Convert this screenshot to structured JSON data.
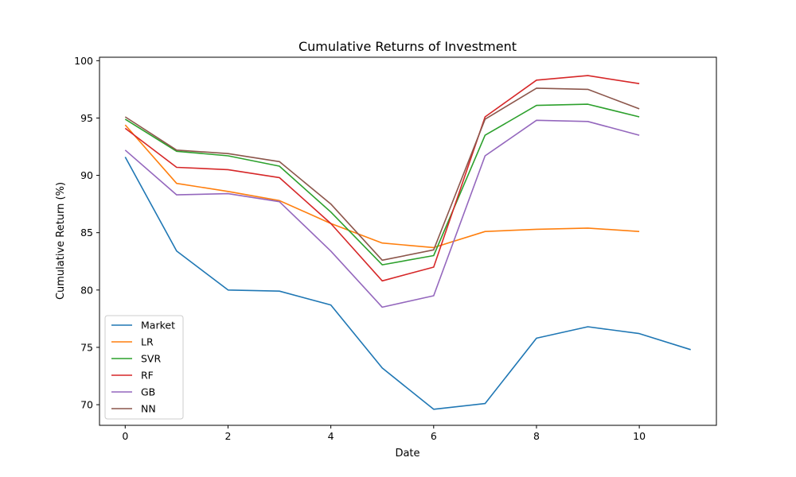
{
  "chart_data": {
    "type": "line",
    "title": "Cumulative Returns of Investment",
    "xlabel": "Date",
    "ylabel": "Cumulative Return (%)",
    "xlim": [
      -0.5,
      11.5
    ],
    "ylim": [
      68.2,
      100.3
    ],
    "xticks": [
      0,
      2,
      4,
      6,
      8,
      10
    ],
    "yticks": [
      70,
      75,
      80,
      85,
      90,
      95,
      100
    ],
    "grid": false,
    "legend_position": "lower-left",
    "series": [
      {
        "name": "Market",
        "color": "#1f77b4",
        "x": [
          0,
          1,
          2,
          3,
          4,
          5,
          6,
          7,
          8,
          9,
          10,
          11
        ],
        "y": [
          91.6,
          83.4,
          80.0,
          79.9,
          78.7,
          73.2,
          69.6,
          70.1,
          75.8,
          76.8,
          76.2,
          74.8
        ]
      },
      {
        "name": "LR",
        "color": "#ff7f0e",
        "x": [
          0,
          1,
          2,
          3,
          4,
          5,
          6,
          7,
          8,
          9,
          10
        ],
        "y": [
          94.4,
          89.3,
          88.6,
          87.8,
          85.8,
          84.1,
          83.7,
          85.1,
          85.3,
          85.4,
          85.1
        ]
      },
      {
        "name": "SVR",
        "color": "#2ca02c",
        "x": [
          0,
          1,
          2,
          3,
          4,
          5,
          6,
          7,
          8,
          9,
          10
        ],
        "y": [
          94.9,
          92.1,
          91.7,
          90.8,
          86.8,
          82.2,
          83.0,
          93.5,
          96.1,
          96.2,
          95.1
        ]
      },
      {
        "name": "RF",
        "color": "#d62728",
        "x": [
          0,
          1,
          2,
          3,
          4,
          5,
          6,
          7,
          8,
          9,
          10
        ],
        "y": [
          94.1,
          90.7,
          90.5,
          89.8,
          85.8,
          80.8,
          82.0,
          95.1,
          98.3,
          98.7,
          98.0
        ]
      },
      {
        "name": "GB",
        "color": "#9467bd",
        "x": [
          0,
          1,
          2,
          3,
          4,
          5,
          6,
          7,
          8,
          9,
          10
        ],
        "y": [
          92.2,
          88.3,
          88.4,
          87.7,
          83.4,
          78.5,
          79.5,
          91.7,
          94.8,
          94.7,
          93.5
        ]
      },
      {
        "name": "NN",
        "color": "#8c564b",
        "x": [
          0,
          1,
          2,
          3,
          4,
          5,
          6,
          7,
          8,
          9,
          10
        ],
        "y": [
          95.1,
          92.2,
          91.9,
          91.2,
          87.5,
          82.6,
          83.5,
          94.9,
          97.6,
          97.5,
          95.8
        ]
      }
    ]
  }
}
